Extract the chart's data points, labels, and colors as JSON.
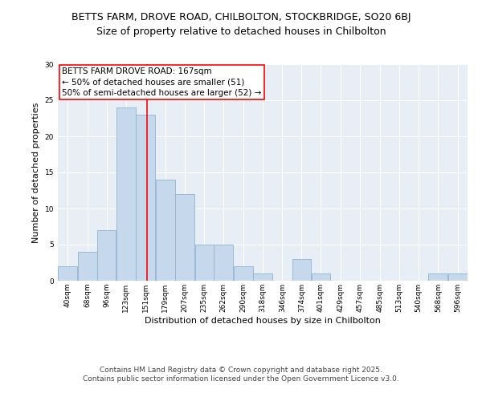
{
  "title_line1": "BETTS FARM, DROVE ROAD, CHILBOLTON, STOCKBRIDGE, SO20 6BJ",
  "title_line2": "Size of property relative to detached houses in Chilbolton",
  "xlabel": "Distribution of detached houses by size in Chilbolton",
  "ylabel": "Number of detached properties",
  "bin_labels": [
    "40sqm",
    "68sqm",
    "96sqm",
    "123sqm",
    "151sqm",
    "179sqm",
    "207sqm",
    "235sqm",
    "262sqm",
    "290sqm",
    "318sqm",
    "346sqm",
    "374sqm",
    "401sqm",
    "429sqm",
    "457sqm",
    "485sqm",
    "513sqm",
    "540sqm",
    "568sqm",
    "596sqm"
  ],
  "bin_edges": [
    40,
    68,
    96,
    123,
    151,
    179,
    207,
    235,
    262,
    290,
    318,
    346,
    374,
    401,
    429,
    457,
    485,
    513,
    540,
    568,
    596,
    624
  ],
  "values": [
    2,
    4,
    7,
    24,
    23,
    14,
    12,
    5,
    5,
    2,
    1,
    0,
    3,
    1,
    0,
    0,
    0,
    0,
    0,
    1,
    1
  ],
  "bar_color": "#c5d8ec",
  "bar_edge_color": "#8fb4d4",
  "property_label": "BETTS FARM DROVE ROAD: 167sqm",
  "annotation_line1": "← 50% of detached houses are smaller (51)",
  "annotation_line2": "50% of semi-detached houses are larger (52) →",
  "vline_x": 167,
  "vline_color": "red",
  "ylim": [
    0,
    30
  ],
  "yticks": [
    0,
    5,
    10,
    15,
    20,
    25,
    30
  ],
  "background_color": "#e8eef5",
  "grid_color": "white",
  "footer_line1": "Contains HM Land Registry data © Crown copyright and database right 2025.",
  "footer_line2": "Contains public sector information licensed under the Open Government Licence v3.0.",
  "title_fontsize": 9,
  "subtitle_fontsize": 9,
  "axis_label_fontsize": 8,
  "tick_fontsize": 6.5,
  "annotation_fontsize": 7.5,
  "footer_fontsize": 6.5
}
